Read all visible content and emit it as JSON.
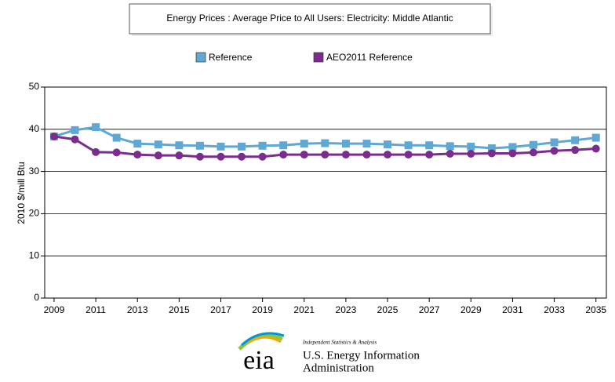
{
  "chart_data": {
    "type": "line",
    "title": "Energy Prices : Average Price to All Users: Electricity: Middle Atlantic",
    "y_label": "2010 $/mill Btu",
    "x": [
      2009,
      2010,
      2011,
      2012,
      2013,
      2014,
      2015,
      2016,
      2017,
      2018,
      2019,
      2020,
      2021,
      2022,
      2023,
      2024,
      2025,
      2026,
      2027,
      2028,
      2029,
      2030,
      2031,
      2032,
      2033,
      2034,
      2035
    ],
    "series": [
      {
        "name": "Reference",
        "color": "#5fa8d3",
        "marker": "square",
        "values": [
          38.3,
          39.8,
          40.5,
          38.0,
          36.6,
          36.4,
          36.2,
          36.1,
          35.9,
          35.9,
          36.1,
          36.2,
          36.6,
          36.7,
          36.6,
          36.6,
          36.4,
          36.2,
          36.2,
          36.0,
          35.9,
          35.5,
          35.8,
          36.3,
          36.9,
          37.4,
          38.0
        ]
      },
      {
        "name": "AEO2011 Reference",
        "color": "#7b2d8e",
        "marker": "circle",
        "values": [
          38.3,
          37.6,
          34.6,
          34.5,
          34.0,
          33.8,
          33.8,
          33.5,
          33.5,
          33.5,
          33.5,
          34.0,
          34.0,
          34.0,
          34.0,
          34.0,
          34.0,
          34.0,
          34.0,
          34.2,
          34.2,
          34.3,
          34.3,
          34.5,
          34.9,
          35.1,
          35.4
        ]
      }
    ],
    "xlim": [
      2008.55,
      2035.5
    ],
    "xticks": [
      2009,
      2011,
      2013,
      2015,
      2017,
      2019,
      2021,
      2023,
      2025,
      2027,
      2029,
      2031,
      2033,
      2035
    ],
    "ylim": [
      0,
      50
    ],
    "yticks": [
      0,
      10,
      20,
      30,
      40,
      50
    ],
    "grid": true,
    "legend": "top"
  },
  "logo": {
    "mark": "eia",
    "tagline": "Independent Statistics & Analysis",
    "line1": "U.S. Energy Information",
    "line2": "Administration"
  }
}
